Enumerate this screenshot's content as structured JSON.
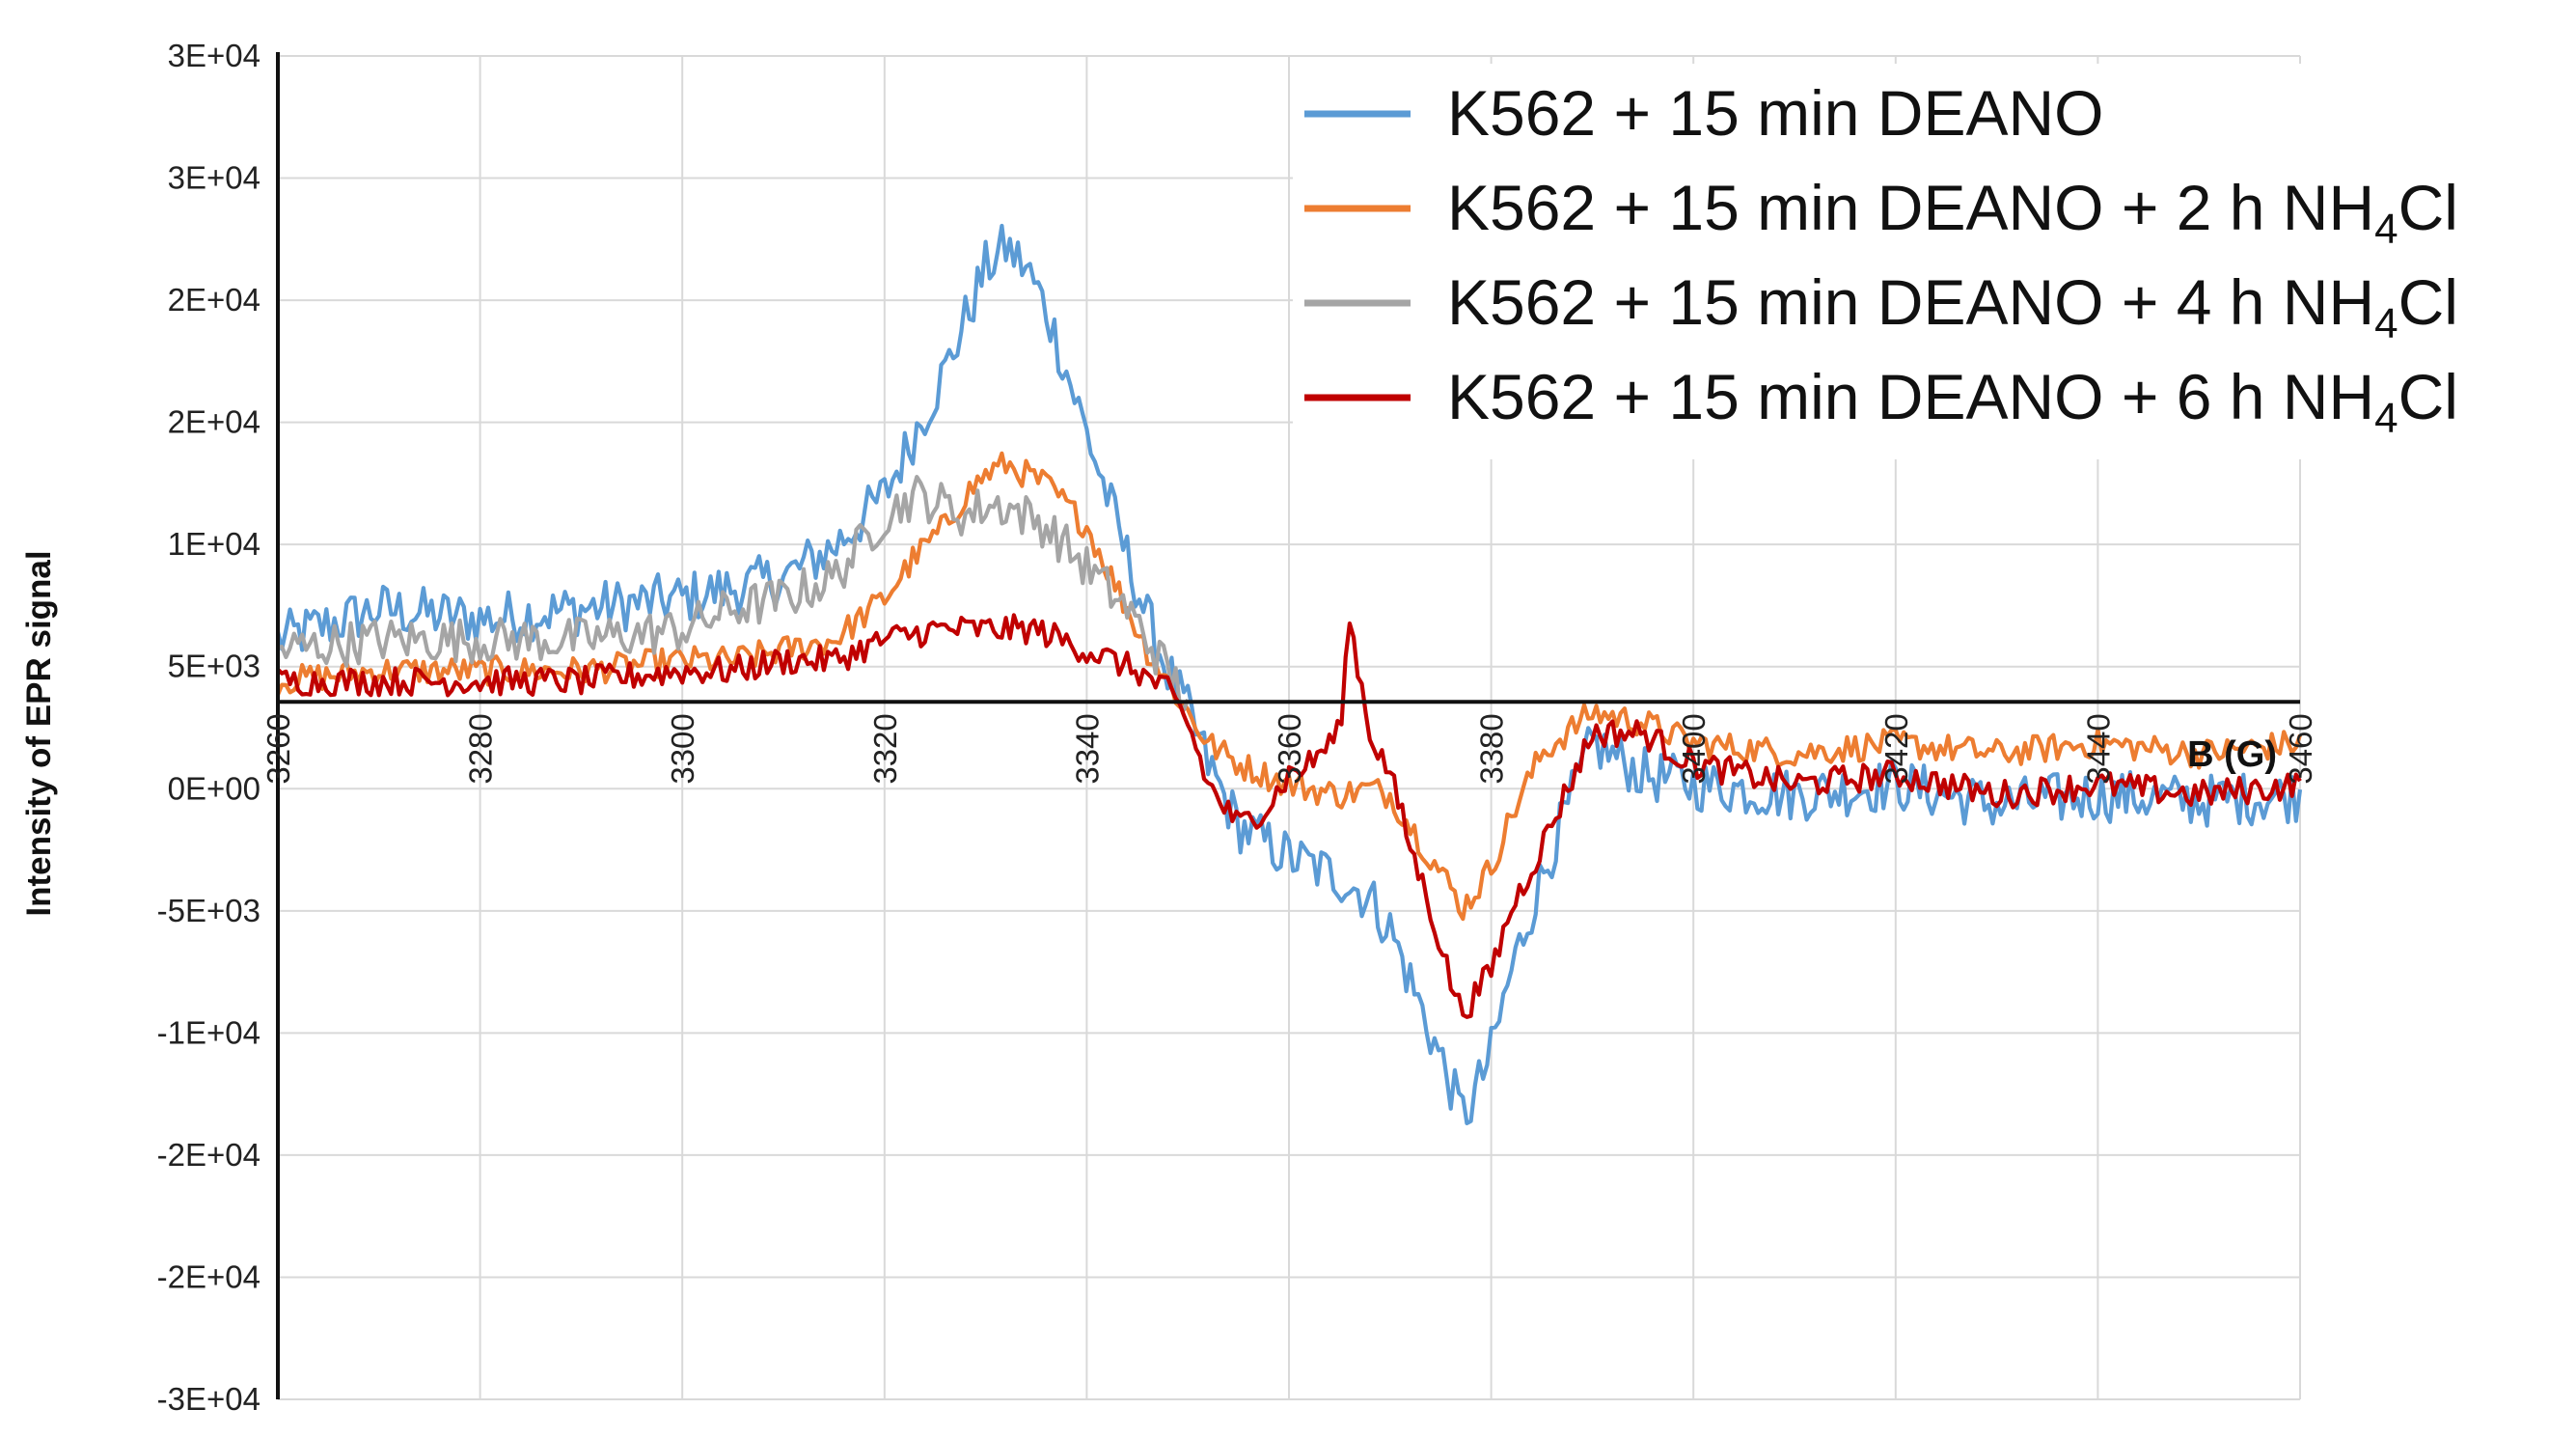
{
  "chart_data": {
    "type": "line",
    "title": "",
    "xlabel": "B (G)",
    "ylabel": "Intensity of EPR signal",
    "xlim": [
      3260,
      3460
    ],
    "ylim": [
      -25000,
      25000
    ],
    "x_tick_labels": [
      "3260",
      "3280",
      "3300",
      "3320",
      "3340",
      "3360",
      "3380",
      "3400",
      "3420",
      "3440",
      "3460"
    ],
    "y_tick_labels": [
      "3E+04",
      "3E+04",
      "2E+04",
      "2E+04",
      "1E+04",
      "5E+03",
      "0E+00",
      "-5E+03",
      "-1E+04",
      "-2E+04",
      "-2E+04",
      "-3E+04"
    ],
    "grid": true,
    "legend_position": "top-right",
    "series": [
      {
        "name": "K562 + 15 min DEANO",
        "color": "#5b9bd5",
        "x": [
          3260,
          3270,
          3280,
          3290,
          3300,
          3305,
          3310,
          3315,
          3320,
          3323,
          3326,
          3328,
          3330,
          3332,
          3334,
          3336,
          3338,
          3340,
          3342,
          3344,
          3346,
          3348,
          3350,
          3352,
          3355,
          3360,
          3365,
          3368,
          3370,
          3372,
          3374,
          3376,
          3377,
          3378,
          3380,
          3382,
          3385,
          3390,
          3395,
          3400,
          3410,
          3420,
          3430,
          3440,
          3450,
          3460
        ],
        "y": [
          3000,
          4500,
          4000,
          4500,
          5000,
          5500,
          6000,
          7500,
          10000,
          13000,
          16000,
          18500,
          21000,
          22000,
          21000,
          19000,
          16000,
          13000,
          10000,
          7000,
          4000,
          1500,
          -500,
          -3000,
          -6000,
          -7500,
          -8500,
          -9500,
          -11000,
          -13500,
          -16000,
          -18500,
          -20000,
          -19500,
          -17000,
          -13000,
          -8500,
          -2000,
          -3500,
          -4000,
          -4500,
          -4000,
          -5000,
          -4500,
          -4800,
          -4500
        ]
      },
      {
        "name": "K562 + 15 min DEANO + 2 h NH₄Cl",
        "color": "#ed7d31",
        "x": [
          3260,
          3270,
          3280,
          3290,
          3300,
          3305,
          3310,
          3315,
          3320,
          3323,
          3326,
          3328,
          3330,
          3332,
          3334,
          3336,
          3338,
          3340,
          3342,
          3344,
          3346,
          3348,
          3350,
          3352,
          3355,
          3360,
          3365,
          3368,
          3370,
          3372,
          3374,
          3376,
          3377,
          3378,
          3380,
          3382,
          3385,
          3390,
          3395,
          3400,
          3410,
          3420,
          3430,
          3440,
          3450,
          3460
        ],
        "y": [
          1000,
          1500,
          1500,
          1500,
          2000,
          2000,
          2500,
          3000,
          5000,
          7000,
          8500,
          10000,
          11000,
          11500,
          11000,
          10500,
          9500,
          8500,
          6500,
          4500,
          2500,
          1000,
          -500,
          -2000,
          -3000,
          -4000,
          -4500,
          -4200,
          -4500,
          -6000,
          -7500,
          -9000,
          -10000,
          -9500,
          -8000,
          -5500,
          -2500,
          -500,
          -1000,
          -2000,
          -2500,
          -2000,
          -2500,
          -2000,
          -2500,
          -2000
        ]
      },
      {
        "name": "K562 + 15 min DEANO + 4 h NH₄Cl",
        "color": "#a5a5a5",
        "x": [
          3260,
          3270,
          3280,
          3290,
          3300,
          3305,
          3310,
          3315,
          3320,
          3323,
          3326,
          3328,
          3330,
          3332,
          3334,
          3336,
          3338,
          3340,
          3342,
          3344,
          3346,
          3348,
          3350
        ],
        "y": [
          2500,
          3000,
          3000,
          3000,
          3500,
          4500,
          5000,
          6000,
          9000,
          10000,
          9500,
          9000,
          9500,
          9500,
          9000,
          8500,
          7500,
          6500,
          5500,
          4500,
          3000,
          1500,
          0
        ]
      },
      {
        "name": "K562 + 15 min DEANO + 6 h NH₄Cl",
        "color": "#c00000",
        "x": [
          3260,
          3270,
          3280,
          3290,
          3300,
          3305,
          3310,
          3315,
          3320,
          3325,
          3330,
          3335,
          3340,
          3345,
          3348,
          3350,
          3352,
          3355,
          3358,
          3360,
          3362,
          3365,
          3366,
          3368,
          3370,
          3372,
          3374,
          3376,
          3377,
          3378,
          3380,
          3382,
          3385,
          3390,
          3395,
          3400,
          3410,
          3420,
          3430,
          3440,
          3450,
          3460
        ],
        "y": [
          1000,
          1000,
          1000,
          1000,
          1500,
          1500,
          2000,
          2000,
          3000,
          3500,
          3500,
          3500,
          2500,
          1500,
          500,
          -1000,
          -4000,
          -6000,
          -5000,
          -3500,
          -3000,
          -1500,
          4000,
          -1500,
          -3500,
          -7000,
          -10000,
          -13500,
          -15000,
          -14500,
          -13000,
          -10000,
          -7000,
          -1500,
          -1500,
          -3000,
          -4000,
          -3500,
          -4500,
          -4000,
          -4500,
          -4000
        ]
      }
    ]
  }
}
